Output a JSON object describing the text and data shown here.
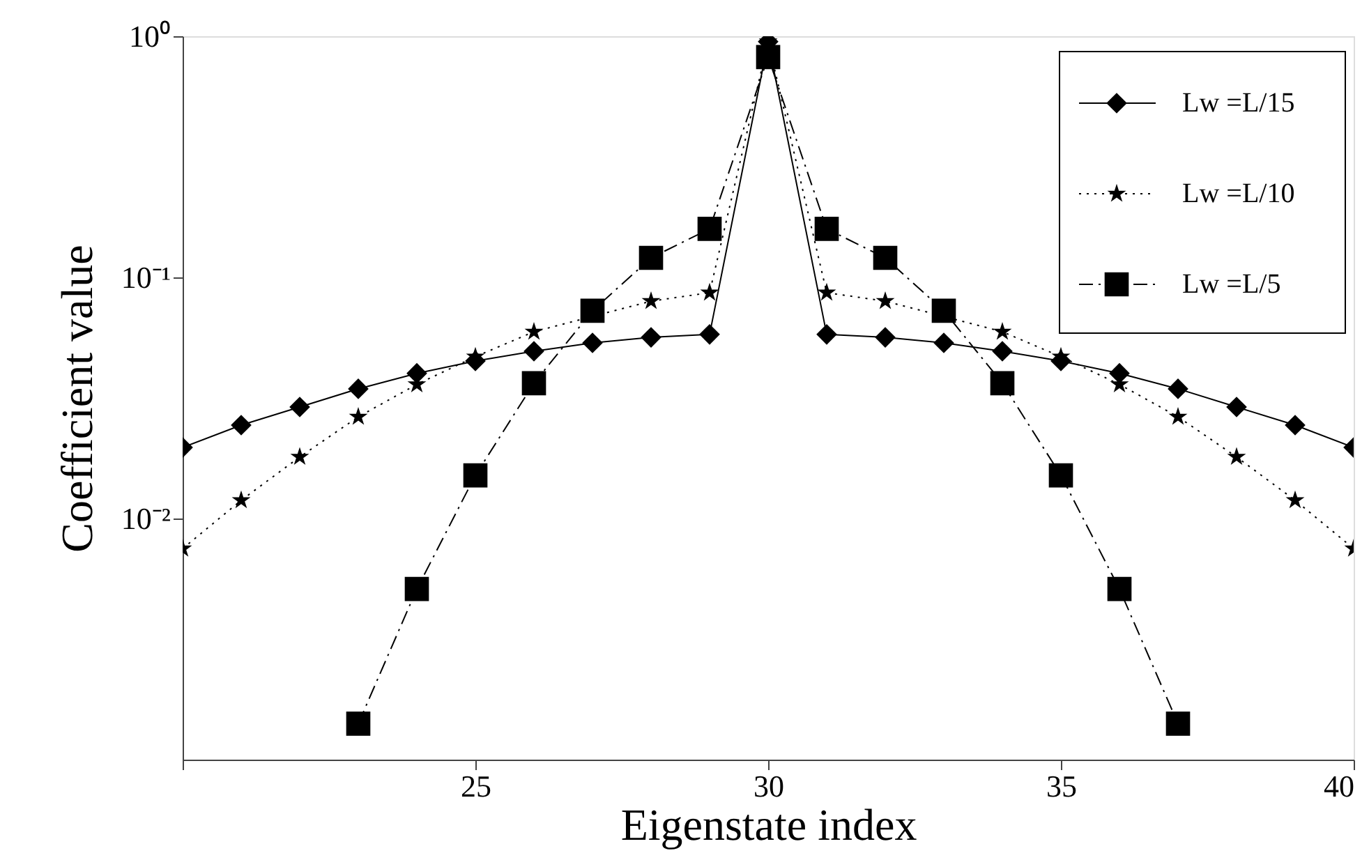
{
  "chart_data": {
    "type": "line",
    "xlabel": "Eigenstate index",
    "ylabel": "Coefficient value",
    "log": "y",
    "legend": "top right",
    "xlim": [
      20,
      40
    ],
    "xticks": [
      {
        "value": 20,
        "label": null
      },
      25,
      30,
      35,
      40
    ],
    "ylim": [
      0.001,
      1
    ],
    "yticks": [
      {
        "value": 0.01,
        "label": "10⁻²"
      },
      {
        "value": 0.1,
        "label": "10⁻¹"
      },
      {
        "value": 1,
        "label": "10⁰"
      }
    ],
    "series": [
      {
        "name": "Lw =L/15",
        "color": "#000000",
        "marker": "diamond",
        "line_style": "solid",
        "x": [
          20,
          21,
          22,
          23,
          24,
          25,
          26,
          27,
          28,
          29,
          30,
          31,
          32,
          33,
          34,
          35,
          36,
          37,
          38,
          39,
          40
        ],
        "values": [
          0.0197,
          0.0244,
          0.029,
          0.0345,
          0.04,
          0.045,
          0.0494,
          0.0535,
          0.0564,
          0.058,
          0.95,
          0.058,
          0.0564,
          0.0535,
          0.0494,
          0.045,
          0.04,
          0.0345,
          0.029,
          0.0244,
          0.0197
        ]
      },
      {
        "name": "Lw =L/10",
        "color": "#000000",
        "marker": "star",
        "line_style": "dotted",
        "x": [
          20,
          21,
          22,
          23,
          24,
          25,
          26,
          27,
          28,
          29,
          30,
          31,
          32,
          33,
          34,
          35,
          36,
          37,
          38,
          39,
          40
        ],
        "values": [
          0.0075,
          0.0119,
          0.018,
          0.0264,
          0.036,
          0.0469,
          0.0595,
          null,
          0.0797,
          0.0864,
          0.95,
          0.0864,
          0.0797,
          null,
          0.0595,
          0.0469,
          0.036,
          0.0264,
          0.018,
          0.0119,
          0.0075
        ]
      },
      {
        "name": "Lw =L/5",
        "color": "#000000",
        "marker": "square",
        "line_style": "dashed",
        "x": [
          23,
          24,
          25,
          26,
          27,
          28,
          29,
          30,
          31,
          32,
          33,
          34,
          35,
          36,
          37
        ],
        "values": [
          0.00141,
          0.0051,
          0.0151,
          0.0364,
          0.0727,
          0.1205,
          0.159,
          0.82,
          0.159,
          0.1205,
          0.0727,
          0.0364,
          0.0151,
          0.0051,
          0.00141
        ]
      }
    ]
  }
}
